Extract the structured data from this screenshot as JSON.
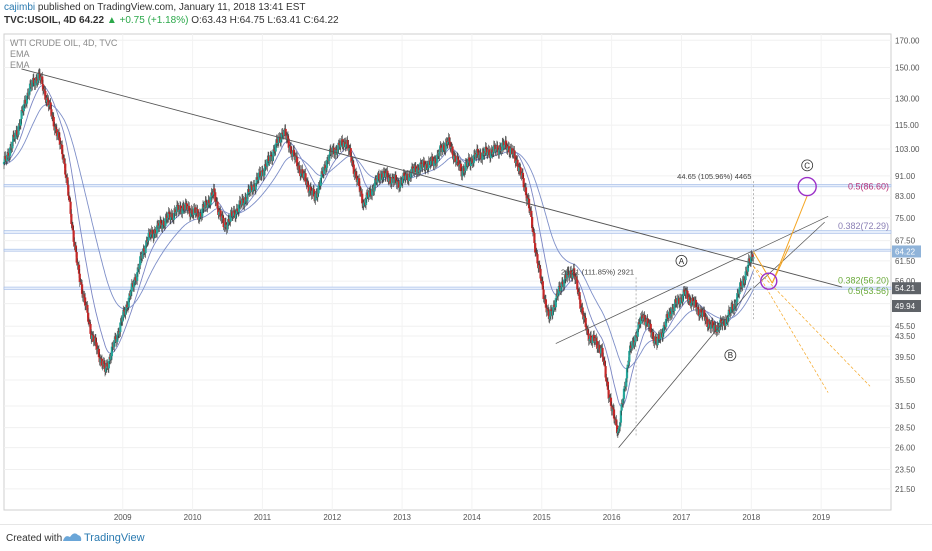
{
  "header": {
    "author": "cajimbi",
    "published": " published on TradingView.com, January 11, 2018 13:41 EST",
    "symbol": "TVC:USOIL, 4D",
    "last": "64.22",
    "change": "▲ +0.75 (+1.18%)",
    "ohlc": "O:63.43 H:64.75 L:63.41 C:64.22"
  },
  "legend": [
    "WTI CRUDE OIL, 4D, TVC",
    "EMA",
    "EMA"
  ],
  "footer": {
    "created": "Created with",
    "brand": "TradingView"
  },
  "colors": {
    "up": "#26a69a",
    "down": "#c62828",
    "wick": "#333333",
    "ema_fast": "#7b86c4",
    "ema_slow": "#7e8fc8",
    "zone": "#9fb8e6",
    "trend": "#555555",
    "arrow": "#f5a623",
    "fib_green": "#6aaa3a",
    "fib_violet": "#8a7fb5",
    "fib_magenta": "#b8377a",
    "circle": "#9b30c8",
    "label_bg": "#5f6368",
    "label_hl": "#8fb3d9"
  },
  "chart_data": {
    "type": "candlestick",
    "title": "WTI CRUDE OIL, 4D, TVC",
    "y_scale": "log",
    "ylim": [
      19.5,
      175
    ],
    "xlim": [
      2007.3,
      2020.0
    ],
    "y_ticks": [
      "170.00",
      "150.00",
      "130.00",
      "115.00",
      "103.00",
      "91.00",
      "83.00",
      "75.00",
      "67.50",
      "61.50",
      "56.00",
      "50.50",
      "45.50",
      "43.50",
      "39.50",
      "35.50",
      "31.50",
      "28.50",
      "26.00",
      "23.50",
      "21.50"
    ],
    "x_ticks": [
      "2009",
      "2010",
      "2011",
      "2012",
      "2013",
      "2014",
      "2015",
      "2016",
      "2017",
      "2018",
      "2019"
    ],
    "price_path": [
      {
        "date": 2007.3,
        "price": 96
      },
      {
        "date": 2007.5,
        "price": 113
      },
      {
        "date": 2007.65,
        "price": 135
      },
      {
        "date": 2007.8,
        "price": 145
      },
      {
        "date": 2007.95,
        "price": 125
      },
      {
        "date": 2008.15,
        "price": 100
      },
      {
        "date": 2008.35,
        "price": 60
      },
      {
        "date": 2008.55,
        "price": 44
      },
      {
        "date": 2008.75,
        "price": 37
      },
      {
        "date": 2008.95,
        "price": 45
      },
      {
        "date": 2009.15,
        "price": 55
      },
      {
        "date": 2009.35,
        "price": 68
      },
      {
        "date": 2009.6,
        "price": 74
      },
      {
        "date": 2009.85,
        "price": 79
      },
      {
        "date": 2010.1,
        "price": 76
      },
      {
        "date": 2010.3,
        "price": 84
      },
      {
        "date": 2010.45,
        "price": 72
      },
      {
        "date": 2010.7,
        "price": 80
      },
      {
        "date": 2010.9,
        "price": 88
      },
      {
        "date": 2011.1,
        "price": 98
      },
      {
        "date": 2011.3,
        "price": 112
      },
      {
        "date": 2011.5,
        "price": 96
      },
      {
        "date": 2011.75,
        "price": 82
      },
      {
        "date": 2011.95,
        "price": 100
      },
      {
        "date": 2012.2,
        "price": 107
      },
      {
        "date": 2012.45,
        "price": 80
      },
      {
        "date": 2012.7,
        "price": 92
      },
      {
        "date": 2012.95,
        "price": 88
      },
      {
        "date": 2013.2,
        "price": 94
      },
      {
        "date": 2013.45,
        "price": 97
      },
      {
        "date": 2013.65,
        "price": 107
      },
      {
        "date": 2013.85,
        "price": 93
      },
      {
        "date": 2014.05,
        "price": 100
      },
      {
        "date": 2014.3,
        "price": 102
      },
      {
        "date": 2014.5,
        "price": 105
      },
      {
        "date": 2014.65,
        "price": 97
      },
      {
        "date": 2014.8,
        "price": 82
      },
      {
        "date": 2014.95,
        "price": 60
      },
      {
        "date": 2015.1,
        "price": 47
      },
      {
        "date": 2015.3,
        "price": 56
      },
      {
        "date": 2015.45,
        "price": 59
      },
      {
        "date": 2015.65,
        "price": 44
      },
      {
        "date": 2015.85,
        "price": 41
      },
      {
        "date": 2016.0,
        "price": 31
      },
      {
        "date": 2016.1,
        "price": 28
      },
      {
        "date": 2016.25,
        "price": 40
      },
      {
        "date": 2016.45,
        "price": 48
      },
      {
        "date": 2016.65,
        "price": 42
      },
      {
        "date": 2016.85,
        "price": 49
      },
      {
        "date": 2017.05,
        "price": 53
      },
      {
        "date": 2017.25,
        "price": 49
      },
      {
        "date": 2017.45,
        "price": 45
      },
      {
        "date": 2017.6,
        "price": 46
      },
      {
        "date": 2017.75,
        "price": 50
      },
      {
        "date": 2017.9,
        "price": 57
      },
      {
        "date": 2018.03,
        "price": 64.22
      }
    ],
    "price_labels": [
      {
        "text": "64.22",
        "value": 64.22,
        "highlight": true
      },
      {
        "text": "54.21",
        "value": 54.21,
        "highlight": false
      },
      {
        "text": "49.94",
        "value": 49.94,
        "highlight": false
      }
    ],
    "zones": [
      87.5,
      86.5,
      70.7,
      69.8,
      64.9,
      64.3,
      54.5,
      53.9
    ],
    "annotations": [
      {
        "text": "A",
        "type": "wave-label",
        "date": 2017.0,
        "price": 61.5
      },
      {
        "text": "B",
        "type": "wave-label",
        "date": 2017.7,
        "price": 39.8
      },
      {
        "text": "C",
        "type": "wave-label",
        "date": 2018.8,
        "price": 95.5
      },
      {
        "text": "44.65 (105.96%) 4465",
        "type": "measure",
        "date": 2018.03,
        "price": 91.0
      },
      {
        "text": "29.21 (111.85%) 2921",
        "type": "measure",
        "date": 2016.35,
        "price": 58.5
      },
      {
        "text": "0.5(86.60)",
        "type": "fib",
        "color": "magenta",
        "price": 86.6
      },
      {
        "text": "0.382(72.29)",
        "type": "fib",
        "color": "violet",
        "price": 72.29
      },
      {
        "text": "0.382(56.20)",
        "type": "fib",
        "color": "green",
        "price": 56.2
      },
      {
        "text": "0.5(53.56)",
        "type": "fib",
        "color": "green",
        "price": 53.56
      }
    ]
  }
}
